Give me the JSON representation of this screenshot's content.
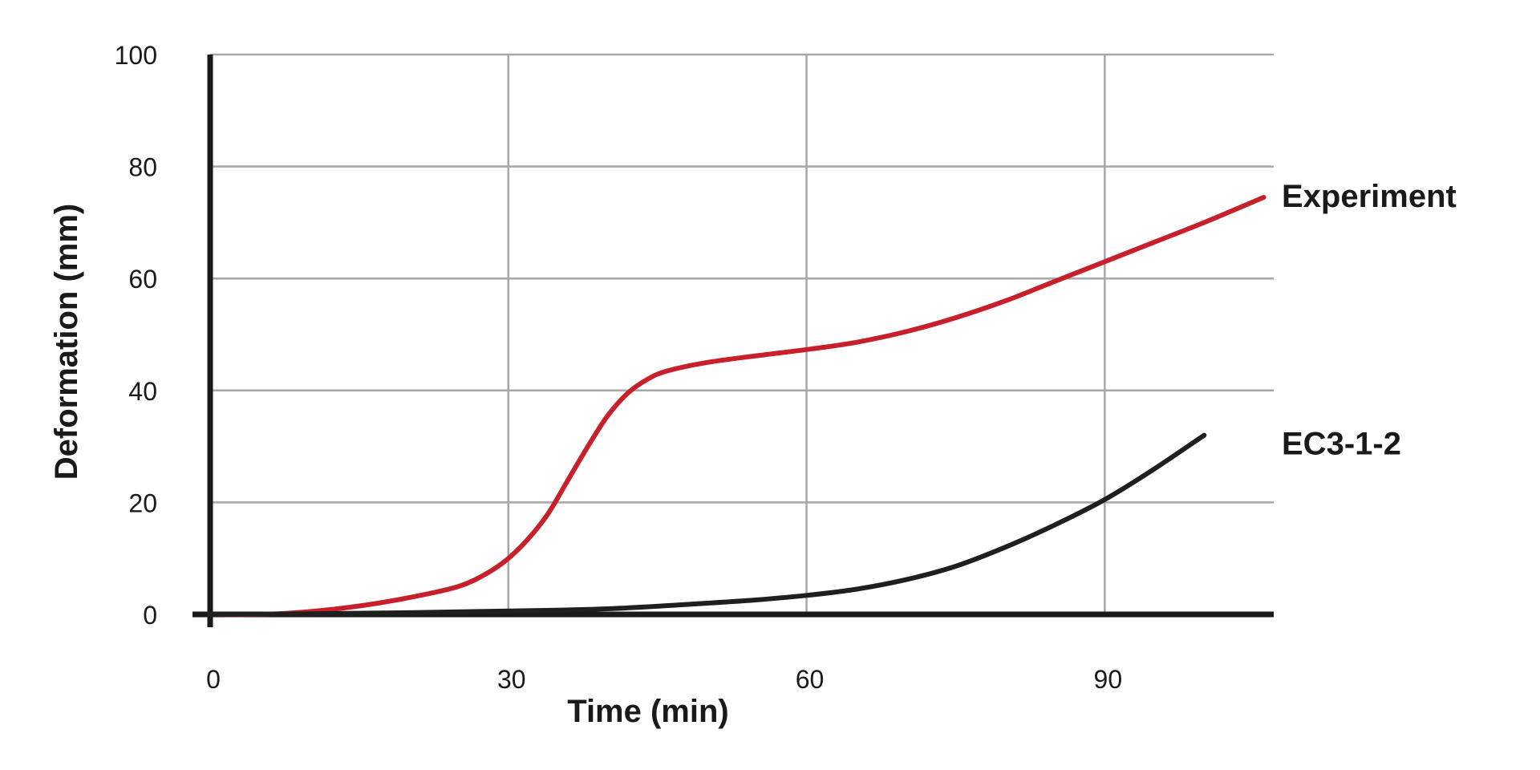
{
  "chart_data": {
    "type": "line",
    "title": "",
    "xlabel": "Time (min)",
    "ylabel": "Deformation (mm)",
    "xlim": [
      0,
      107
    ],
    "ylim": [
      0,
      100
    ],
    "xticks": [
      0,
      30,
      60,
      90
    ],
    "yticks": [
      0,
      20,
      40,
      60,
      80,
      100
    ],
    "grid": true,
    "legend": "inline labels at right end of each line",
    "series": [
      {
        "name": "Experiment",
        "color": "#c8202b",
        "x": [
          0,
          5,
          10,
          15,
          20,
          25,
          28,
          30,
          32,
          34,
          36,
          38,
          40,
          42,
          44,
          46,
          50,
          55,
          60,
          65,
          70,
          75,
          80,
          85,
          90,
          95,
          100,
          106
        ],
        "y": [
          0,
          0,
          0.5,
          1.5,
          3,
          5,
          7.5,
          10,
          13.5,
          18,
          24,
          30,
          35.5,
          39.5,
          42,
          43.5,
          45,
          46.2,
          47.3,
          48.6,
          50.5,
          53,
          56,
          59.5,
          63,
          66.5,
          70,
          74.5
        ]
      },
      {
        "name": "EC3-1-2",
        "color": "#1f1f1f",
        "x": [
          0,
          10,
          20,
          30,
          40,
          50,
          55,
          60,
          65,
          70,
          75,
          80,
          85,
          90,
          95,
          100
        ],
        "y": [
          0,
          0.1,
          0.3,
          0.6,
          1,
          2,
          2.6,
          3.4,
          4.5,
          6.2,
          8.6,
          12,
          16,
          20.5,
          26,
          32
        ]
      }
    ]
  }
}
